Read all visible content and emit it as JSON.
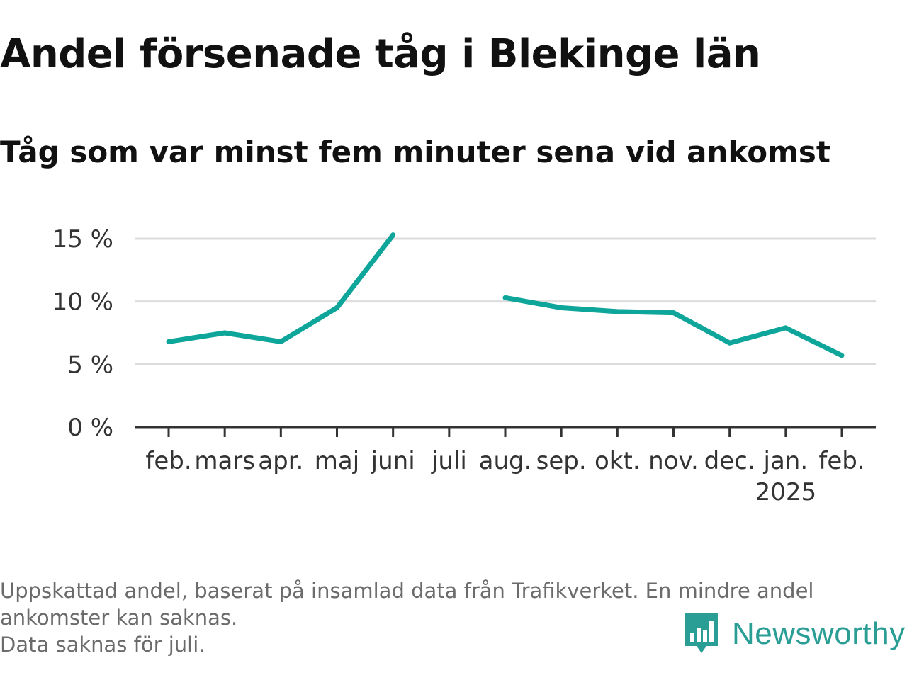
{
  "title": "Andel försenade tåg i Blekinge län",
  "subtitle": "Tåg som var minst fem minuter sena vid ankomst",
  "chart_data": {
    "type": "line",
    "categories": [
      "feb.",
      "mars",
      "apr.",
      "maj",
      "juni",
      "juli",
      "aug.",
      "sep.",
      "okt.",
      "nov.",
      "dec.",
      "jan.",
      "feb."
    ],
    "category_sublabels": [
      "",
      "",
      "",
      "",
      "",
      "",
      "",
      "",
      "",
      "",
      "",
      "2025",
      ""
    ],
    "series": [
      {
        "values": [
          6.8,
          7.5,
          6.8,
          9.5,
          15.3,
          null,
          10.3,
          9.5,
          9.2,
          9.1,
          6.7,
          7.9,
          5.7
        ],
        "color": "#0ea59a"
      }
    ],
    "yticks": [
      0,
      5,
      10,
      15
    ],
    "ytick_labels": [
      "0 %",
      "5 %",
      "10 %",
      "15 %"
    ],
    "ylim": [
      0,
      15
    ],
    "grid": true
  },
  "footer": {
    "lines": [
      "Uppskattad andel, baserat på insamlad data från Trafikverket. En mindre andel",
      "ankomster kan saknas.",
      "Data saknas för juli."
    ]
  },
  "logo": {
    "text": "Newsworthy",
    "icon": "newsworthy-logo-icon",
    "color": "#2a9d95"
  }
}
